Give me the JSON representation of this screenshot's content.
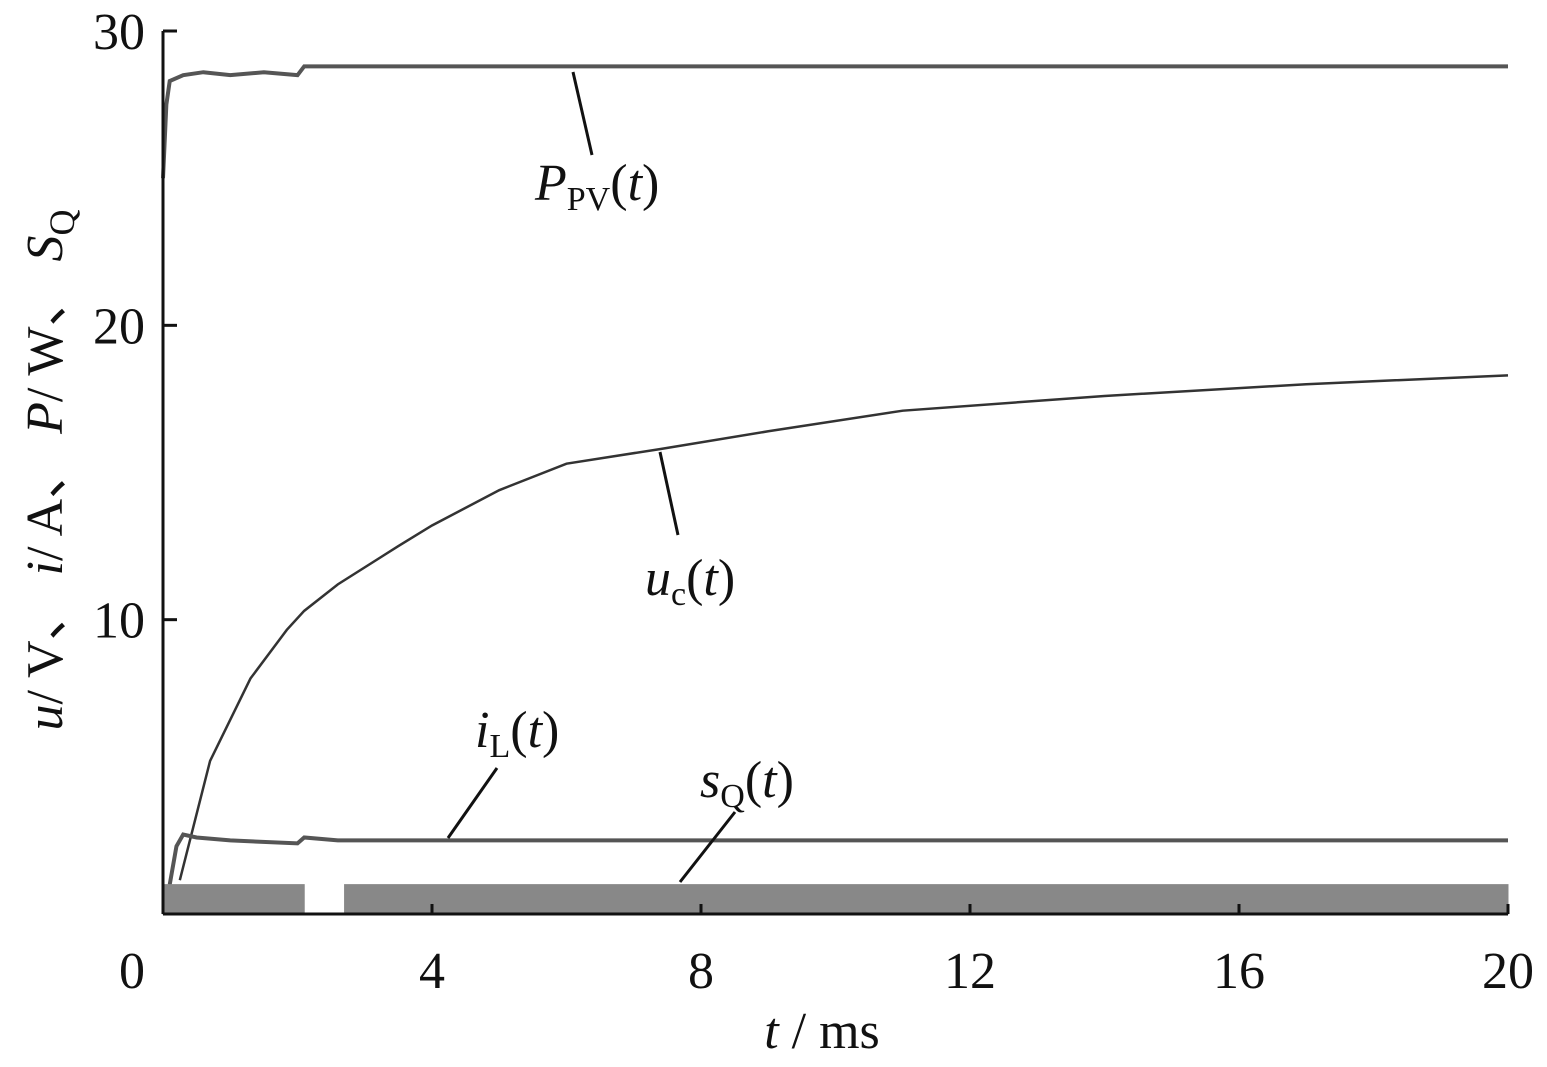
{
  "chart_data": {
    "type": "line",
    "xlabel": {
      "main": "t",
      "rest": " / ms"
    },
    "ylabel": [
      "u",
      "/ V、 ",
      "i",
      "/ A、 ",
      "P",
      "/ W、 ",
      "S",
      "Q"
    ],
    "xlim": [
      0,
      20
    ],
    "xticks": [
      0,
      4,
      8,
      12,
      16,
      20
    ],
    "ylim": [
      0,
      30
    ],
    "yticks": [
      10,
      20,
      30
    ],
    "series": [
      {
        "label": {
          "main": "P",
          "sub": "PV",
          "rest": "(t)"
        },
        "color": "#555555",
        "x": [
          0,
          0.05,
          0.1,
          0.3,
          0.6,
          1,
          1.5,
          2,
          2.1,
          2.3,
          3,
          20
        ],
        "values": [
          25,
          27.5,
          28.3,
          28.5,
          28.6,
          28.5,
          28.6,
          28.5,
          28.8,
          28.8,
          28.8,
          28.8
        ]
      },
      {
        "label": {
          "main": "u",
          "sub": "c",
          "rest": "(t)"
        },
        "color": "#333333",
        "x": [
          0.25,
          0.7,
          1.3,
          1.84,
          2.1,
          2.6,
          3.5,
          4,
          5,
          6,
          7.4,
          9,
          11,
          14,
          17,
          20
        ],
        "values": [
          1.15,
          5.2,
          8,
          9.65,
          10.3,
          11.2,
          12.5,
          13.2,
          14.4,
          15.3,
          15.8,
          16.4,
          17.1,
          17.6,
          18,
          18.3
        ]
      },
      {
        "label": {
          "main": "i",
          "sub": "L",
          "rest": "(t)"
        },
        "color": "#555555",
        "x": [
          0.1,
          0.2,
          0.3,
          0.5,
          1,
          2,
          2.1,
          2.6,
          4,
          20
        ],
        "values": [
          1,
          2.3,
          2.7,
          2.6,
          2.5,
          2.4,
          2.6,
          2.5,
          2.5,
          2.5
        ]
      },
      {
        "label": {
          "main": "s",
          "sub": "Q",
          "rest": "(t)"
        },
        "color": "#888888",
        "fill": true,
        "x": [
          0,
          2.1,
          2.1,
          2.7,
          2.7,
          20
        ],
        "values": [
          1,
          1,
          0,
          0,
          1,
          1
        ]
      }
    ]
  }
}
